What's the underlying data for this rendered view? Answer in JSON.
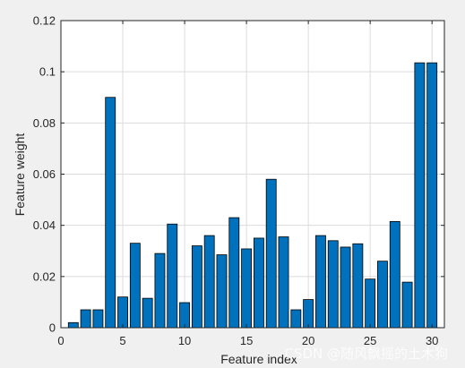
{
  "chart_data": {
    "type": "bar",
    "title": "",
    "xlabel": "Feature index",
    "ylabel": "Feature weight",
    "categories": [
      1,
      2,
      3,
      4,
      5,
      6,
      7,
      8,
      9,
      10,
      11,
      12,
      13,
      14,
      15,
      16,
      17,
      18,
      19,
      20,
      21,
      22,
      23,
      24,
      25,
      26,
      27,
      28,
      29,
      30
    ],
    "values": [
      0.002,
      0.007,
      0.007,
      0.09,
      0.012,
      0.033,
      0.0115,
      0.029,
      0.0405,
      0.0098,
      0.032,
      0.036,
      0.0285,
      0.043,
      0.0308,
      0.035,
      0.058,
      0.0355,
      0.007,
      0.011,
      0.036,
      0.034,
      0.0315,
      0.0328,
      0.019,
      0.026,
      0.0415,
      0.0178,
      0.1035,
      0.1035
    ],
    "xlim": [
      0,
      31
    ],
    "ylim": [
      0,
      0.12
    ],
    "xticks": [
      0,
      5,
      10,
      15,
      20,
      25,
      30
    ],
    "xtick_labels": [
      "0",
      "5",
      "10",
      "15",
      "20",
      "25",
      "30"
    ],
    "yticks": [
      0,
      0.02,
      0.04,
      0.06,
      0.08,
      0.1,
      0.12
    ],
    "ytick_labels": [
      "0",
      "0.02",
      "0.04",
      "0.06",
      "0.08",
      "0.1",
      "0.12"
    ],
    "grid": true,
    "bar_color": "#0072bd",
    "bar_edge_color": "#000000"
  },
  "watermark": "CSDN @随风飘摇的土木狗"
}
